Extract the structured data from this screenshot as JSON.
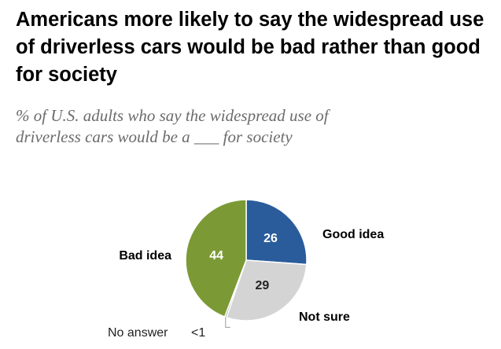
{
  "title": "Americans more likely to say the widespread use of driverless cars would be bad rather than good for society",
  "subtitle_line1": "% of U.S. adults who say the widespread use of",
  "subtitle_line2": "driverless cars would be a ___ for society",
  "chart_data": {
    "type": "pie",
    "slices": [
      {
        "label": "Good idea",
        "value": 26,
        "value_label": "26",
        "color": "#2a5c9b"
      },
      {
        "label": "Not sure",
        "value": 29,
        "value_label": "29",
        "color": "#d4d4d4"
      },
      {
        "label": "No answer",
        "value": 0.5,
        "value_label": "<1",
        "color": "#9a9a9a"
      },
      {
        "label": "Bad idea",
        "value": 44,
        "value_label": "44",
        "color": "#7b9a35"
      }
    ],
    "legend": "none"
  }
}
